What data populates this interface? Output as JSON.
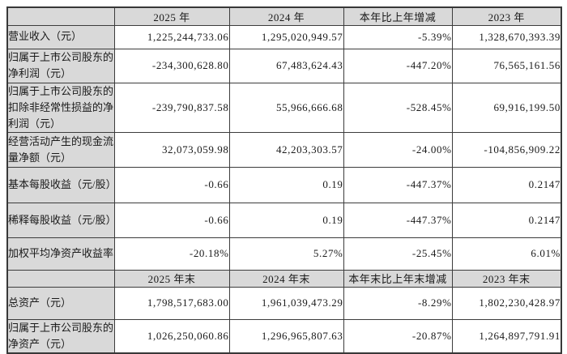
{
  "table": {
    "colors": {
      "header_bg": "#d9d9d9",
      "label_bg": "#d9d9d9",
      "cell_bg": "#ffffff",
      "border": "#3c3c3c",
      "text": "#1a1a1a"
    },
    "header_row_1": {
      "corner": "",
      "col1": "2025 年",
      "col2": "2024 年",
      "col3": "本年比上年增减",
      "col4": "2023 年"
    },
    "header_row_2": {
      "corner": "",
      "col1": "2025 年末",
      "col2": "2024 年末",
      "col3": "本年末比上年末增减",
      "col4": "2023 年末"
    },
    "rows_annual": [
      {
        "label": "营业收入（元）",
        "values": [
          "1,225,244,733.06",
          "1,295,020,949.57",
          "-5.39%",
          "1,328,670,393.39"
        ]
      },
      {
        "label": "归属于上市公司股东的净利润（元）",
        "values": [
          "-234,300,628.80",
          "67,483,624.43",
          "-447.20%",
          "76,565,161.56"
        ]
      },
      {
        "label": "归属于上市公司股东的扣除非经常性损益的净利润（元）",
        "values": [
          "-239,790,837.58",
          "55,966,666.68",
          "-528.45%",
          "69,916,199.50"
        ]
      },
      {
        "label": "经营活动产生的现金流量净额（元）",
        "values": [
          "32,073,059.98",
          "42,203,303.57",
          "-24.00%",
          "-104,856,909.22"
        ]
      },
      {
        "label": "基本每股收益（元/股）",
        "values": [
          "-0.66",
          "0.19",
          "-447.37%",
          "0.2147"
        ]
      },
      {
        "label": "稀释每股收益（元/股）",
        "values": [
          "-0.66",
          "0.19",
          "-447.37%",
          "0.2147"
        ]
      },
      {
        "label": "加权平均净资产收益率",
        "values": [
          "-20.18%",
          "5.27%",
          "-25.45%",
          "6.01%"
        ]
      }
    ],
    "rows_eoy": [
      {
        "label": "总资产（元）",
        "values": [
          "1,798,517,683.00",
          "1,961,039,473.29",
          "-8.29%",
          "1,802,230,428.97"
        ]
      },
      {
        "label": "归属于上市公司股东的净资产（元）",
        "values": [
          "1,026,250,060.86",
          "1,296,965,807.63",
          "-20.87%",
          "1,264,897,791.91"
        ]
      }
    ]
  }
}
